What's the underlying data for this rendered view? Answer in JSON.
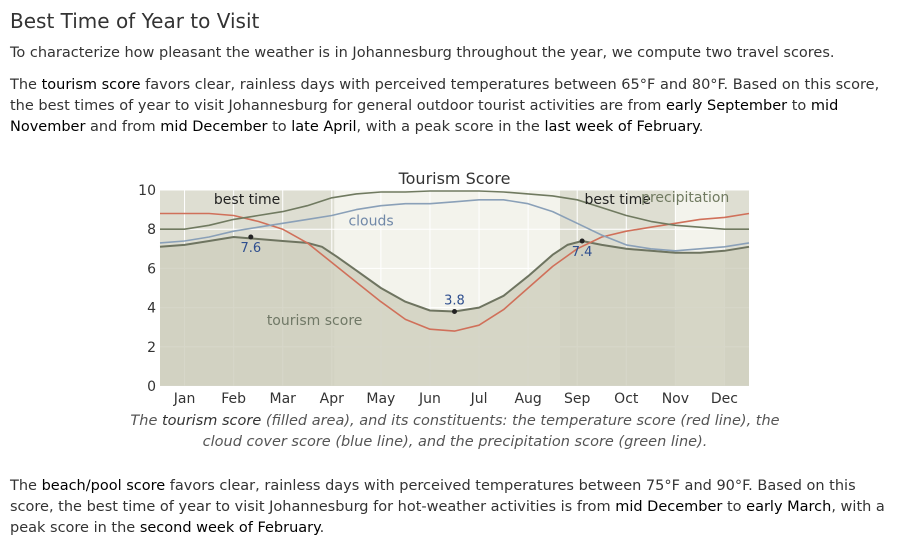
{
  "heading": "Best Time of Year to Visit",
  "intro": "To characterize how pleasant the weather is in Johannesburg throughout the year, we compute two travel scores.",
  "tourism": {
    "p_a": "The ",
    "term": "tourism score",
    "p_b": " favors clear, rainless days with perceived temperatures between 65°F and 80°F. Based on this score, the best times of year to visit Johannesburg for general outdoor tourist activities are from ",
    "r1_start": "early September",
    "p_c": " to ",
    "r1_end": "mid November",
    "p_d": " and from ",
    "r2_start": "mid December",
    "p_e": " to ",
    "r2_end": "late April",
    "p_f": ", with a peak score in the ",
    "peak": "last week of February",
    "p_g": "."
  },
  "caption": {
    "a": "The ",
    "term": "tourism score",
    "b": " (filled area), and its constituents: the temperature score (red line), the cloud cover score (blue line), and the precipitation score (green line)."
  },
  "beach": {
    "p_a": "The ",
    "term": "beach/pool score",
    "p_b": " favors clear, rainless days with perceived temperatures between 75°F and 90°F. Based on this score, the best time of year to visit Johannesburg for hot-weather activities is from ",
    "r_start": "mid December",
    "p_c": " to ",
    "r_end": "early March",
    "p_d": ", with a peak score in the ",
    "peak": "second week of February",
    "p_e": "."
  },
  "chart_data": {
    "type": "area",
    "title": "Tourism Score",
    "months": [
      "Jan",
      "Feb",
      "Mar",
      "Apr",
      "May",
      "Jun",
      "Jul",
      "Aug",
      "Sep",
      "Oct",
      "Nov",
      "Dec"
    ],
    "x_unit": "month of year (0 = Jan 1, 12 = Dec 31)",
    "ylim": [
      0,
      10
    ],
    "yticks": [
      0,
      2,
      4,
      6,
      8,
      10
    ],
    "best_time_label": "best time",
    "best_time_ranges": [
      [
        0,
        3.55
      ],
      [
        8.15,
        10.5
      ],
      [
        11.5,
        12
      ]
    ],
    "series": [
      {
        "name": "tourism score",
        "style": "area",
        "color": "#6e7460",
        "fill": "#d0d0c0",
        "x": [
          0,
          0.5,
          1,
          1.5,
          2,
          2.5,
          3,
          3.3,
          3.6,
          4,
          4.5,
          5,
          5.5,
          6,
          6.5,
          7,
          7.5,
          8,
          8.3,
          8.6,
          9,
          9.5,
          10,
          10.5,
          11,
          11.5,
          12
        ],
        "y": [
          7.1,
          7.2,
          7.4,
          7.6,
          7.5,
          7.4,
          7.3,
          7.1,
          6.6,
          5.9,
          5.0,
          4.3,
          3.85,
          3.8,
          4.0,
          4.6,
          5.6,
          6.7,
          7.2,
          7.4,
          7.2,
          7.0,
          6.9,
          6.8,
          6.8,
          6.9,
          7.1
        ]
      },
      {
        "name": "temperature score",
        "style": "line",
        "color": "#d0705a",
        "x": [
          0,
          0.5,
          1,
          1.5,
          2,
          2.5,
          3,
          3.5,
          4,
          4.5,
          5,
          5.5,
          6,
          6.5,
          7,
          7.5,
          8,
          8.5,
          9,
          9.5,
          10,
          10.5,
          11,
          11.5,
          12
        ],
        "y": [
          8.8,
          8.8,
          8.8,
          8.7,
          8.4,
          8.0,
          7.3,
          6.3,
          5.3,
          4.3,
          3.4,
          2.9,
          2.8,
          3.1,
          3.9,
          5.0,
          6.1,
          7.0,
          7.6,
          7.9,
          8.1,
          8.3,
          8.5,
          8.6,
          8.8
        ]
      },
      {
        "name": "clouds",
        "style": "line",
        "color": "#8aa0b8",
        "x": [
          0,
          0.5,
          1,
          1.5,
          2,
          2.5,
          3,
          3.5,
          4,
          4.5,
          5,
          5.5,
          6,
          6.5,
          7,
          7.5,
          8,
          8.5,
          9,
          9.5,
          10,
          10.5,
          11,
          11.5,
          12
        ],
        "y": [
          7.3,
          7.4,
          7.6,
          7.9,
          8.1,
          8.3,
          8.5,
          8.7,
          9.0,
          9.2,
          9.3,
          9.3,
          9.4,
          9.5,
          9.5,
          9.3,
          8.9,
          8.3,
          7.7,
          7.2,
          7.0,
          6.9,
          7.0,
          7.1,
          7.3
        ]
      },
      {
        "name": "precipitation",
        "style": "line",
        "color": "#707a60",
        "x": [
          0,
          0.5,
          1,
          1.5,
          2,
          2.5,
          3,
          3.5,
          4,
          4.5,
          5,
          5.5,
          6,
          6.5,
          7,
          7.5,
          8,
          8.5,
          9,
          9.5,
          10,
          10.5,
          11,
          11.5,
          12
        ],
        "y": [
          8.0,
          8.0,
          8.2,
          8.5,
          8.7,
          8.9,
          9.2,
          9.6,
          9.8,
          9.9,
          9.9,
          9.95,
          9.95,
          9.95,
          9.9,
          9.8,
          9.7,
          9.5,
          9.1,
          8.7,
          8.4,
          8.2,
          8.1,
          8.0,
          8.0
        ]
      }
    ],
    "annotations": [
      {
        "text": "7.6",
        "x": 1.85,
        "y": 7.6
      },
      {
        "text": "3.8",
        "x": 6.0,
        "y": 3.8
      },
      {
        "text": "7.4",
        "x": 8.6,
        "y": 7.4
      }
    ],
    "series_labels": [
      {
        "text": "clouds",
        "x": 4.3,
        "y": 8.2
      },
      {
        "text": "precipitation",
        "x": 10.7,
        "y": 9.4
      },
      {
        "text": "tourism score",
        "x": 3.15,
        "y": 3.1
      }
    ]
  }
}
